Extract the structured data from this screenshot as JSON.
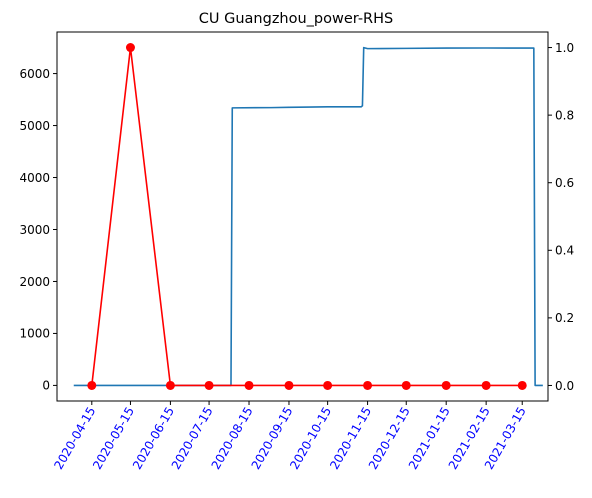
{
  "chart_data": {
    "type": "line",
    "title": "CU Guangzhou_power-RHS",
    "xlabel": "",
    "ylabel_left": "",
    "ylabel_right": "",
    "grid": false,
    "legend": "none",
    "x_range": [
      "2020-03-19",
      "2021-04-04"
    ],
    "ylim_left": [
      -300,
      6800
    ],
    "ylim_right": [
      -0.046,
      1.046
    ],
    "yticks_left": [
      0,
      1000,
      2000,
      3000,
      4000,
      5000,
      6000
    ],
    "yticks_right": [
      0.0,
      0.2,
      0.4,
      0.6,
      0.8,
      1.0
    ],
    "xticks": [
      "2020-04-15",
      "2020-05-15",
      "2020-06-15",
      "2020-07-15",
      "2020-08-15",
      "2020-09-15",
      "2020-10-15",
      "2020-11-15",
      "2020-12-15",
      "2021-01-15",
      "2021-02-15",
      "2021-03-15"
    ],
    "xtick_color": "#0000ff",
    "series": [
      {
        "axis": "left",
        "color": "#1f77b4",
        "style": "line",
        "points": [
          [
            "2020-04-01",
            0
          ],
          [
            "2020-08-01",
            0
          ],
          [
            "2020-08-02",
            5340
          ],
          [
            "2020-09-01",
            5345
          ],
          [
            "2020-09-15",
            5350
          ],
          [
            "2020-10-01",
            5355
          ],
          [
            "2020-10-15",
            5360
          ],
          [
            "2020-11-10",
            5360
          ],
          [
            "2020-11-11",
            5380
          ],
          [
            "2020-11-12",
            6500
          ],
          [
            "2020-11-15",
            6480
          ],
          [
            "2020-12-15",
            6485
          ],
          [
            "2021-01-15",
            6490
          ],
          [
            "2021-02-15",
            6492
          ],
          [
            "2021-03-24",
            6490
          ],
          [
            "2021-03-25",
            0
          ],
          [
            "2021-03-31",
            0
          ]
        ]
      },
      {
        "axis": "right",
        "color": "#ff0000",
        "style": "line-marker",
        "points": [
          [
            "2020-04-15",
            0
          ],
          [
            "2020-05-15",
            1
          ],
          [
            "2020-06-15",
            0
          ],
          [
            "2020-07-15",
            0
          ],
          [
            "2020-08-15",
            0
          ],
          [
            "2020-09-15",
            0
          ],
          [
            "2020-10-15",
            0
          ],
          [
            "2020-11-15",
            0
          ],
          [
            "2020-12-15",
            0
          ],
          [
            "2021-01-15",
            0
          ],
          [
            "2021-02-15",
            0
          ],
          [
            "2021-03-15",
            0
          ]
        ]
      }
    ]
  }
}
